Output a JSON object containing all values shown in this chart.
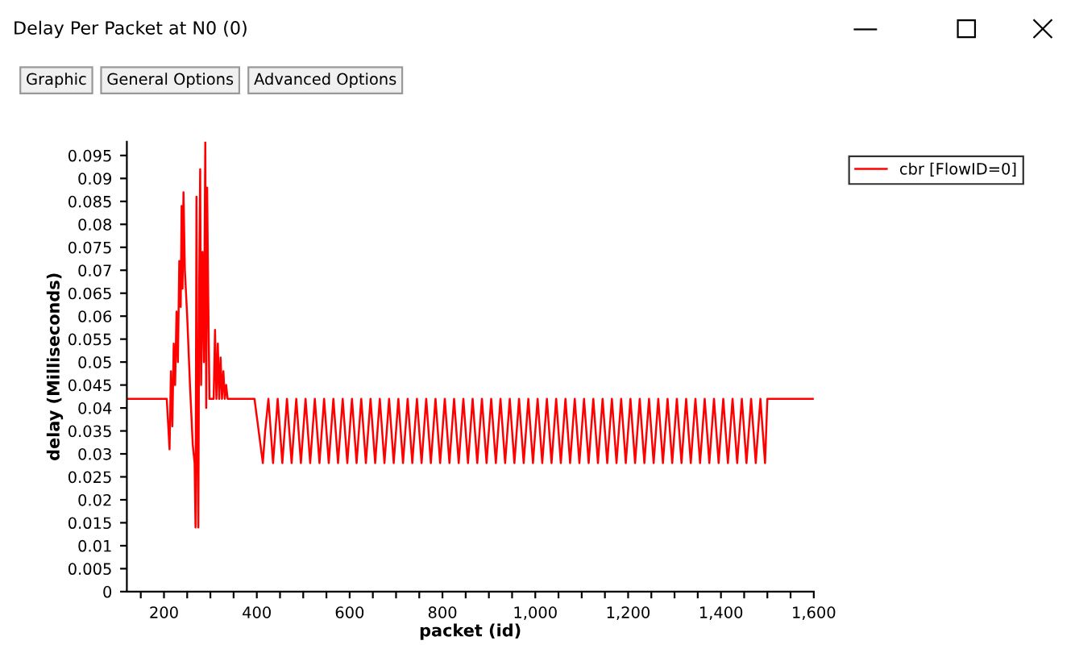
{
  "chart_data": {
    "type": "line",
    "title": "Delay Per Packet at N0 (0)",
    "annotations": [
      "Graphic",
      "General Options",
      "Advanced Options"
    ],
    "xlabel": "packet (id)",
    "ylabel": "delay (Milliseconds)",
    "series": [
      {
        "name": "cbr [FlowID=0]",
        "color": "#ff0000",
        "x": [
          120,
          206,
          212,
          215,
          218,
          221,
          224,
          227,
          230,
          233,
          236,
          238,
          240,
          242,
          245,
          250,
          256,
          262,
          266,
          268,
          270,
          272,
          274,
          276,
          278,
          280,
          283,
          286,
          289,
          291,
          293,
          295,
          298,
          307,
          310,
          313,
          316,
          319,
          322,
          325,
          328,
          331,
          334,
          337,
          395,
          413,
          418,
          425,
          435,
          445,
          455,
          465,
          475,
          485,
          495,
          505,
          515,
          525,
          535,
          545,
          555,
          565,
          575,
          585,
          595,
          605,
          615,
          625,
          635,
          645,
          655,
          665,
          675,
          685,
          695,
          705,
          715,
          725,
          735,
          745,
          755,
          765,
          775,
          785,
          795,
          805,
          815,
          825,
          835,
          845,
          855,
          865,
          875,
          885,
          895,
          905,
          915,
          925,
          935,
          945,
          955,
          965,
          975,
          985,
          995,
          1005,
          1015,
          1025,
          1035,
          1045,
          1055,
          1065,
          1075,
          1085,
          1095,
          1105,
          1115,
          1125,
          1135,
          1145,
          1155,
          1165,
          1175,
          1185,
          1195,
          1205,
          1215,
          1225,
          1235,
          1245,
          1255,
          1265,
          1275,
          1285,
          1295,
          1305,
          1315,
          1325,
          1335,
          1345,
          1355,
          1365,
          1375,
          1385,
          1395,
          1405,
          1415,
          1425,
          1435,
          1445,
          1455,
          1465,
          1475,
          1485,
          1495,
          1500,
          1600
        ],
        "values": [
          0.042,
          0.042,
          0.031,
          0.048,
          0.036,
          0.054,
          0.045,
          0.061,
          0.05,
          0.072,
          0.062,
          0.084,
          0.066,
          0.087,
          0.07,
          0.06,
          0.045,
          0.032,
          0.028,
          0.014,
          0.086,
          0.032,
          0.014,
          0.068,
          0.092,
          0.045,
          0.074,
          0.05,
          0.098,
          0.04,
          0.088,
          0.067,
          0.042,
          0.042,
          0.057,
          0.042,
          0.054,
          0.042,
          0.051,
          0.042,
          0.048,
          0.042,
          0.045,
          0.042,
          0.042,
          0.028,
          0.035,
          0.042,
          0.028,
          0.042,
          0.028,
          0.042,
          0.028,
          0.042,
          0.028,
          0.042,
          0.028,
          0.042,
          0.028,
          0.042,
          0.028,
          0.042,
          0.028,
          0.042,
          0.028,
          0.042,
          0.028,
          0.042,
          0.028,
          0.042,
          0.028,
          0.042,
          0.028,
          0.042,
          0.028,
          0.042,
          0.028,
          0.042,
          0.028,
          0.042,
          0.028,
          0.042,
          0.028,
          0.042,
          0.028,
          0.042,
          0.028,
          0.042,
          0.028,
          0.042,
          0.028,
          0.042,
          0.028,
          0.042,
          0.028,
          0.042,
          0.028,
          0.042,
          0.028,
          0.042,
          0.028,
          0.042,
          0.028,
          0.042,
          0.028,
          0.042,
          0.028,
          0.042,
          0.028,
          0.042,
          0.028,
          0.042,
          0.028,
          0.042,
          0.028,
          0.042,
          0.028,
          0.042,
          0.028,
          0.042,
          0.028,
          0.042,
          0.028,
          0.042,
          0.028,
          0.042,
          0.028,
          0.042,
          0.028,
          0.042,
          0.028,
          0.042,
          0.028,
          0.042,
          0.028,
          0.042,
          0.028,
          0.042,
          0.028,
          0.042,
          0.028,
          0.042,
          0.028,
          0.042,
          0.028,
          0.042,
          0.028,
          0.042,
          0.028,
          0.042,
          0.028,
          0.042,
          0.028,
          0.042,
          0.028,
          0.042,
          0.042
        ]
      }
    ],
    "xlim": [
      120,
      1600
    ],
    "ylim": [
      0,
      0.098
    ],
    "xticks": [
      {
        "value": 150,
        "label": null
      },
      {
        "value": 200,
        "label": "200"
      },
      {
        "value": 250,
        "label": null
      },
      {
        "value": 300,
        "label": null
      },
      {
        "value": 350,
        "label": null
      },
      {
        "value": 400,
        "label": "400"
      },
      {
        "value": 450,
        "label": null
      },
      {
        "value": 500,
        "label": null
      },
      {
        "value": 550,
        "label": null
      },
      {
        "value": 600,
        "label": "600"
      },
      {
        "value": 650,
        "label": null
      },
      {
        "value": 700,
        "label": null
      },
      {
        "value": 750,
        "label": null
      },
      {
        "value": 800,
        "label": "800"
      },
      {
        "value": 850,
        "label": null
      },
      {
        "value": 900,
        "label": null
      },
      {
        "value": 950,
        "label": null
      },
      {
        "value": 1000,
        "label": "1,000"
      },
      {
        "value": 1050,
        "label": null
      },
      {
        "value": 1100,
        "label": null
      },
      {
        "value": 1150,
        "label": null
      },
      {
        "value": 1200,
        "label": "1,200"
      },
      {
        "value": 1250,
        "label": null
      },
      {
        "value": 1300,
        "label": null
      },
      {
        "value": 1350,
        "label": null
      },
      {
        "value": 1400,
        "label": "1,400"
      },
      {
        "value": 1450,
        "label": null
      },
      {
        "value": 1500,
        "label": null
      },
      {
        "value": 1550,
        "label": null
      },
      {
        "value": 1600,
        "label": "1,600"
      }
    ],
    "yticks": [
      0,
      0.005,
      0.01,
      0.015,
      0.02,
      0.025,
      0.03,
      0.035,
      0.04,
      0.045,
      0.05,
      0.055,
      0.06,
      0.065,
      0.07,
      0.075,
      0.08,
      0.085,
      0.09,
      0.095
    ],
    "grid": false,
    "legend": "top right",
    "marker": "none",
    "line_style": "solid"
  }
}
